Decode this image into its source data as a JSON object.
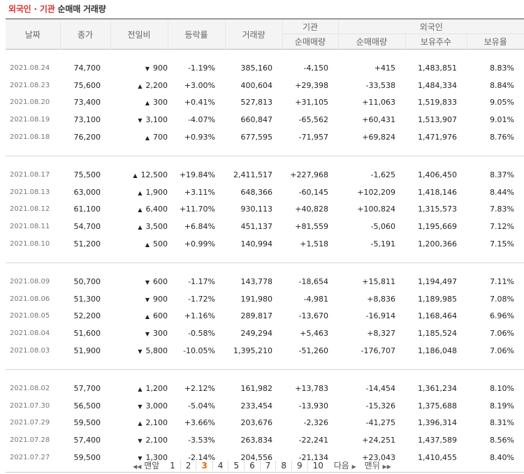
{
  "caption": {
    "foreign": "외국인",
    "sep": " · ",
    "inst": "기관",
    "rest": " 순매매 거래량"
  },
  "headers": {
    "date": "날짜",
    "close": "종가",
    "diff": "전일비",
    "rate": "등락률",
    "volume": "거래량",
    "inst_group": "기관",
    "inst_net": "순매매량",
    "foreign_group": "외국인",
    "foreign_net": "순매매량",
    "foreign_holdings": "보유주수",
    "foreign_ratio": "보유율"
  },
  "groups": [
    [
      {
        "date": "2021.08.24",
        "close": "74,700",
        "dir": "down",
        "diff": "900",
        "rate": "-1.19%",
        "volume": "385,160",
        "inst": "-4,150",
        "foreign": "+415",
        "holdings": "1,483,851",
        "ratio": "8.83%"
      },
      {
        "date": "2021.08.23",
        "close": "75,600",
        "dir": "up",
        "diff": "2,200",
        "rate": "+3.00%",
        "volume": "400,604",
        "inst": "+29,398",
        "foreign": "-33,538",
        "holdings": "1,484,334",
        "ratio": "8.84%"
      },
      {
        "date": "2021.08.20",
        "close": "73,400",
        "dir": "up",
        "diff": "300",
        "rate": "+0.41%",
        "volume": "527,813",
        "inst": "+31,105",
        "foreign": "+11,063",
        "holdings": "1,519,833",
        "ratio": "9.05%"
      },
      {
        "date": "2021.08.19",
        "close": "73,100",
        "dir": "down",
        "diff": "3,100",
        "rate": "-4.07%",
        "volume": "660,847",
        "inst": "-65,562",
        "foreign": "+60,431",
        "holdings": "1,513,907",
        "ratio": "9.01%"
      },
      {
        "date": "2021.08.18",
        "close": "76,200",
        "dir": "up",
        "diff": "700",
        "rate": "+0.93%",
        "volume": "677,595",
        "inst": "-71,957",
        "foreign": "+69,824",
        "holdings": "1,471,976",
        "ratio": "8.76%"
      }
    ],
    [
      {
        "date": "2021.08.17",
        "close": "75,500",
        "dir": "up",
        "diff": "12,500",
        "rate": "+19.84%",
        "volume": "2,411,517",
        "inst": "+227,968",
        "foreign": "-1,625",
        "holdings": "1,406,450",
        "ratio": "8.37%"
      },
      {
        "date": "2021.08.13",
        "close": "63,000",
        "dir": "up",
        "diff": "1,900",
        "rate": "+3.11%",
        "volume": "648,366",
        "inst": "-60,145",
        "foreign": "+102,209",
        "holdings": "1,418,146",
        "ratio": "8.44%"
      },
      {
        "date": "2021.08.12",
        "close": "61,100",
        "dir": "up",
        "diff": "6,400",
        "rate": "+11.70%",
        "volume": "930,113",
        "inst": "+40,828",
        "foreign": "+100,824",
        "holdings": "1,315,573",
        "ratio": "7.83%"
      },
      {
        "date": "2021.08.11",
        "close": "54,700",
        "dir": "up",
        "diff": "3,500",
        "rate": "+6.84%",
        "volume": "451,137",
        "inst": "+81,559",
        "foreign": "-5,060",
        "holdings": "1,195,669",
        "ratio": "7.12%"
      },
      {
        "date": "2021.08.10",
        "close": "51,200",
        "dir": "up",
        "diff": "500",
        "rate": "+0.99%",
        "volume": "140,994",
        "inst": "+1,518",
        "foreign": "-5,191",
        "holdings": "1,200,366",
        "ratio": "7.15%"
      }
    ],
    [
      {
        "date": "2021.08.09",
        "close": "50,700",
        "dir": "down",
        "diff": "600",
        "rate": "-1.17%",
        "volume": "143,778",
        "inst": "-18,654",
        "foreign": "+15,811",
        "holdings": "1,194,497",
        "ratio": "7.11%"
      },
      {
        "date": "2021.08.06",
        "close": "51,300",
        "dir": "down",
        "diff": "900",
        "rate": "-1.72%",
        "volume": "191,980",
        "inst": "-4,981",
        "foreign": "+8,836",
        "holdings": "1,189,985",
        "ratio": "7.08%"
      },
      {
        "date": "2021.08.05",
        "close": "52,200",
        "dir": "up",
        "diff": "600",
        "rate": "+1.16%",
        "volume": "289,817",
        "inst": "-13,670",
        "foreign": "-16,914",
        "holdings": "1,168,464",
        "ratio": "6.96%"
      },
      {
        "date": "2021.08.04",
        "close": "51,600",
        "dir": "down",
        "diff": "300",
        "rate": "-0.58%",
        "volume": "249,294",
        "inst": "+5,463",
        "foreign": "+8,327",
        "holdings": "1,185,524",
        "ratio": "7.06%"
      },
      {
        "date": "2021.08.03",
        "close": "51,900",
        "dir": "down",
        "diff": "5,800",
        "rate": "-10.05%",
        "volume": "1,395,210",
        "inst": "-51,260",
        "foreign": "-176,707",
        "holdings": "1,186,048",
        "ratio": "7.06%"
      }
    ],
    [
      {
        "date": "2021.08.02",
        "close": "57,700",
        "dir": "up",
        "diff": "1,200",
        "rate": "+2.12%",
        "volume": "161,982",
        "inst": "+13,783",
        "foreign": "-14,454",
        "holdings": "1,361,234",
        "ratio": "8.10%"
      },
      {
        "date": "2021.07.30",
        "close": "56,500",
        "dir": "down",
        "diff": "3,000",
        "rate": "-5.04%",
        "volume": "233,454",
        "inst": "-13,930",
        "foreign": "-15,326",
        "holdings": "1,375,688",
        "ratio": "8.19%"
      },
      {
        "date": "2021.07.29",
        "close": "59,500",
        "dir": "up",
        "diff": "2,100",
        "rate": "+3.66%",
        "volume": "203,676",
        "inst": "-2,326",
        "foreign": "-41,275",
        "holdings": "1,396,314",
        "ratio": "8.31%"
      },
      {
        "date": "2021.07.28",
        "close": "57,400",
        "dir": "down",
        "diff": "2,100",
        "rate": "-3.53%",
        "volume": "263,834",
        "inst": "-22,241",
        "foreign": "+24,251",
        "holdings": "1,437,589",
        "ratio": "8.56%"
      },
      {
        "date": "2021.07.27",
        "close": "59,500",
        "dir": "down",
        "diff": "1,300",
        "rate": "-2.14%",
        "volume": "204,556",
        "inst": "-21,134",
        "foreign": "+23,043",
        "holdings": "1,410,455",
        "ratio": "8.40%"
      }
    ]
  ],
  "pagination": {
    "first_label": "맨앞",
    "pages": [
      "1",
      "2",
      "3",
      "4",
      "5",
      "6",
      "7",
      "8",
      "9",
      "10"
    ],
    "current": "3",
    "next_label": "다음",
    "last_label": "맨뒤"
  },
  "colors": {
    "up": "#d9302f",
    "down": "#1a5fb4",
    "current_page": "#e06a00"
  },
  "icons": {
    "up": "triangle-up-icon",
    "down": "triangle-down-icon",
    "first": "double-left-arrow-icon",
    "next": "right-arrow-icon",
    "last": "double-right-arrow-icon"
  }
}
